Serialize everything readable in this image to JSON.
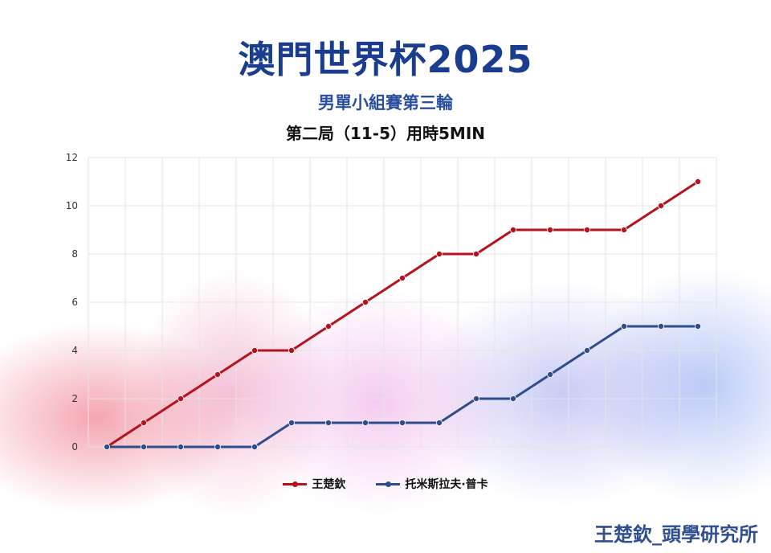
{
  "header": {
    "title": "澳門世界杯2025",
    "subtitle": "男單小組賽第三輪",
    "subtitle2": "第二局（11-5）用時5MIN"
  },
  "watermark": "王楚欽_頭學研究所",
  "chart_data": {
    "type": "line",
    "x": [
      1,
      2,
      3,
      4,
      5,
      6,
      7,
      8,
      9,
      10,
      11,
      12,
      13,
      14,
      15,
      16,
      17
    ],
    "ylim": [
      0,
      12
    ],
    "yticks": [
      "0",
      "2",
      "4",
      "6",
      "8",
      "10",
      "12"
    ],
    "grid": true,
    "legend_position": "bottom",
    "series": [
      {
        "name": "王楚欽",
        "color": "#b5121b",
        "values": [
          0,
          1,
          2,
          3,
          4,
          4,
          5,
          6,
          7,
          8,
          8,
          9,
          9,
          9,
          9,
          10,
          11
        ]
      },
      {
        "name": "托米斯拉夫·普卡",
        "color": "#2e4d8c",
        "values": [
          0,
          0,
          0,
          0,
          0,
          1,
          1,
          1,
          1,
          1,
          2,
          2,
          3,
          4,
          5,
          5,
          5
        ]
      }
    ]
  }
}
